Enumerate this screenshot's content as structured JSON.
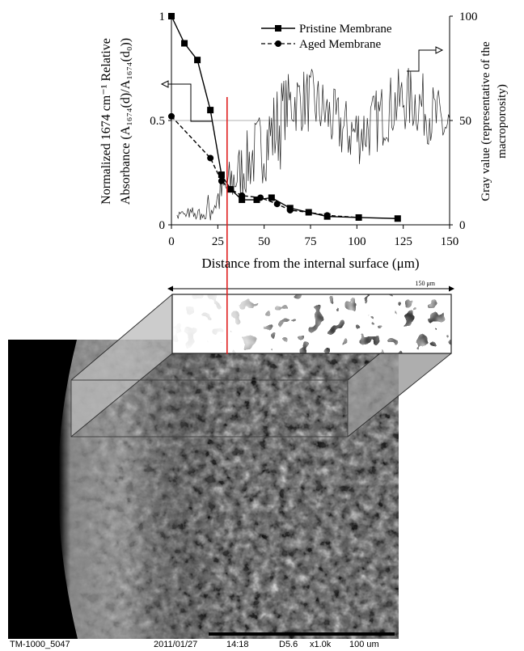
{
  "chart_data": {
    "type": "line",
    "xlabel": "Distance from the internal surface (μm)",
    "ylabel_left_line1": "Normalized 1674 cm⁻¹ Relative",
    "ylabel_left_line2": "Absorbance (A₁₆₇₄(d)/A₁₆₇₄(d₀))",
    "ylabel_right_line1": "Gray value (representative of the",
    "ylabel_right_line2": "macroporosity)",
    "xlim": [
      0,
      150
    ],
    "ylim_left": [
      0,
      1
    ],
    "ylim_right": [
      0,
      100
    ],
    "x_ticks": [
      "0",
      "25",
      "50",
      "75",
      "100",
      "125",
      "150"
    ],
    "y_left_ticks": [
      "0",
      "0.5",
      "1"
    ],
    "y_right_ticks": [
      "0",
      "50",
      "100"
    ],
    "grid": "horizontal at 0.5",
    "legend_position": "top-left",
    "series": [
      {
        "name": "Pristine Membrane",
        "marker": "square",
        "line_style": "solid",
        "axis": "left",
        "x": [
          0,
          7,
          14,
          21,
          27,
          32,
          38,
          46,
          54,
          64,
          74,
          84,
          101,
          122
        ],
        "y": [
          1.0,
          0.87,
          0.79,
          0.55,
          0.24,
          0.17,
          0.12,
          0.12,
          0.13,
          0.08,
          0.06,
          0.04,
          0.035,
          0.03
        ]
      },
      {
        "name": "Aged Membrane",
        "marker": "circle",
        "line_style": "dashed",
        "axis": "left",
        "x": [
          0,
          21,
          27,
          32,
          38,
          48,
          57,
          64,
          74,
          84,
          101
        ],
        "y": [
          0.52,
          0.32,
          0.21,
          0.17,
          0.14,
          0.13,
          0.1,
          0.07,
          0.06,
          0.045,
          0.035
        ]
      }
    ],
    "gray_profile": {
      "axis": "right",
      "note_arrows": [
        "left",
        "right"
      ]
    },
    "marker_line_x": 30
  },
  "micrograph": {
    "scale_label": "150 μm",
    "footer_left": "TM-1000_5047",
    "footer_date": "2011/01/27",
    "footer_time": "14:18",
    "footer_mode": "D5.6",
    "footer_mag": "x1.0k",
    "footer_scale": "100 um"
  },
  "colors": {
    "axis": "#000000",
    "marker_line": "#e02020",
    "grid": "#999999",
    "perspective_fill": "#bbbbbb"
  }
}
